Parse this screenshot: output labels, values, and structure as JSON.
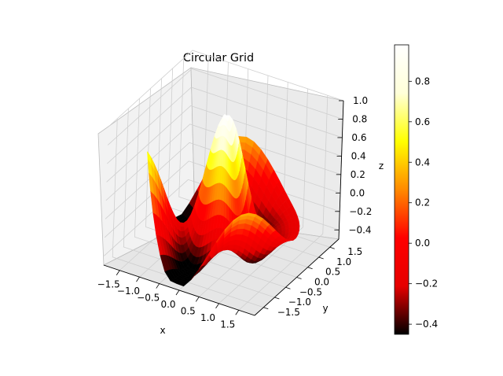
{
  "chart_data": {
    "type": "surface",
    "title": "Circular Grid",
    "xlabel": "x",
    "ylabel": "y",
    "zlabel": "z",
    "x_ticks": [
      -1.5,
      -1.0,
      -0.5,
      0.0,
      0.5,
      1.0,
      1.5
    ],
    "x_tick_labels": [
      "−1.5",
      "−1.0",
      "−0.5",
      "0.0",
      "0.5",
      "1.0",
      "1.5"
    ],
    "y_ticks": [
      -1.5,
      -1.0,
      -0.5,
      0.0,
      0.5,
      1.0,
      1.5
    ],
    "y_tick_labels": [
      "−1.5",
      "−1.0",
      "−0.5",
      "0.0",
      "0.5",
      "1.0",
      "1.5"
    ],
    "z_ticks": [
      -0.4,
      -0.2,
      0.0,
      0.2,
      0.4,
      0.6,
      0.8,
      1.0
    ],
    "z_tick_labels": [
      "−0.4",
      "−0.2",
      "0.0",
      "0.2",
      "0.4",
      "0.6",
      "0.8",
      "1.0"
    ],
    "xlim": [
      -1.9,
      1.9
    ],
    "ylim": [
      -1.9,
      1.9
    ],
    "zlim": [
      -0.5,
      1.0
    ],
    "grid": true,
    "surface_domain": "disk of radius 1.7 centered at origin",
    "peak_value": 0.98,
    "min_value": -0.45,
    "colormap": "hot",
    "colormap_stops": [
      "#000000",
      "#e60000",
      "#ff0000",
      "#ff8a00",
      "#ffff00",
      "#ffffd9",
      "#ffffff"
    ],
    "colorbar": {
      "min": -0.45,
      "max": 0.98,
      "ticks": [
        -0.4,
        -0.2,
        0.0,
        0.2,
        0.4,
        0.6,
        0.8
      ],
      "tick_labels": [
        "−0.4",
        "−0.2",
        "0.0",
        "0.2",
        "0.4",
        "0.6",
        "0.8"
      ],
      "position": "right"
    }
  }
}
